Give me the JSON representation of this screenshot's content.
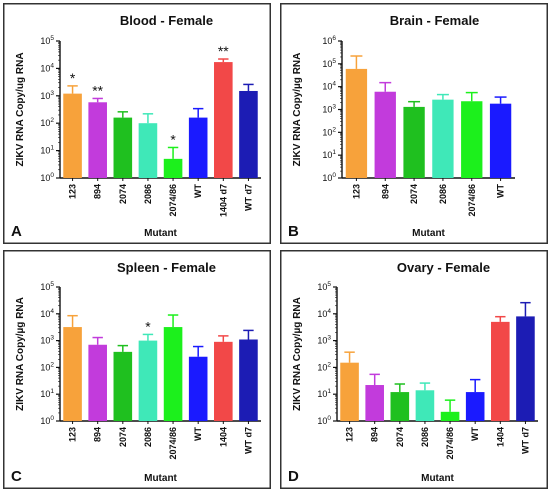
{
  "colors": {
    "orange": "#f7a23b",
    "magenta": "#c23bdc",
    "green": "#1fc01f",
    "aqua": "#3fe8b8",
    "lime": "#1cf01c",
    "blue": "#1a1aff",
    "red": "#f24848",
    "navy": "#1c1cb4"
  },
  "chart_data": [
    {
      "id": "a",
      "type": "bar",
      "panel_letter": "A",
      "title": "Blood - Female",
      "xlabel": "Mutant",
      "ylabel": "ZIKV RNA Copy/ug RNA",
      "log_scale": true,
      "ylim_exp": [
        0,
        5
      ],
      "categories": [
        "123",
        "894",
        "2074",
        "2086",
        "2074/86",
        "WT",
        "1404 d7",
        "WT d7"
      ],
      "values": [
        1200,
        580,
        160,
        100,
        5,
        160,
        17000,
        1500
      ],
      "error_upper": [
        2300,
        800,
        260,
        220,
        13,
        340,
        22000,
        2600
      ],
      "bar_colors": [
        "orange",
        "magenta",
        "green",
        "aqua",
        "lime",
        "blue",
        "red",
        "navy"
      ],
      "annotations": [
        "*",
        "**",
        "",
        "",
        "*",
        "",
        "**",
        ""
      ]
    },
    {
      "id": "b",
      "type": "bar",
      "panel_letter": "B",
      "title": "Brain - Female",
      "xlabel": "Mutant",
      "ylabel": "ZIKV RNA Copy/µg RNA",
      "log_scale": true,
      "ylim_exp": [
        0,
        6
      ],
      "categories": [
        "123",
        "894",
        "2074",
        "2086",
        "2074/86",
        "WT"
      ],
      "values": [
        60000,
        6000,
        1300,
        2700,
        2300,
        1800
      ],
      "error_upper": [
        220000,
        15000,
        2200,
        4500,
        5500,
        3500
      ],
      "bar_colors": [
        "orange",
        "magenta",
        "green",
        "aqua",
        "lime",
        "blue"
      ],
      "annotations": [
        "",
        "",
        "",
        "",
        "",
        ""
      ]
    },
    {
      "id": "c",
      "type": "bar",
      "panel_letter": "C",
      "title": "Spleen - Female",
      "xlabel": "Mutant",
      "ylabel": "ZIKV RNA Copy/µg RNA",
      "log_scale": true,
      "ylim_exp": [
        0,
        5
      ],
      "categories": [
        "123",
        "894",
        "2074",
        "2086",
        "2074/86",
        "WT",
        "1404",
        "WT d7"
      ],
      "values": [
        3200,
        700,
        380,
        1000,
        3200,
        250,
        900,
        1100
      ],
      "error_upper": [
        8500,
        1300,
        650,
        1700,
        9000,
        600,
        1500,
        2400
      ],
      "bar_colors": [
        "orange",
        "magenta",
        "green",
        "aqua",
        "lime",
        "blue",
        "red",
        "navy"
      ],
      "annotations": [
        "",
        "",
        "",
        "*",
        "",
        "",
        "",
        ""
      ]
    },
    {
      "id": "d",
      "type": "bar",
      "panel_letter": "D",
      "title": "Ovary - Female",
      "xlabel": "Mutant",
      "ylabel": "ZIKV RNA Copy/µg RNA",
      "log_scale": true,
      "ylim_exp": [
        0,
        5
      ],
      "categories": [
        "123",
        "894",
        "2074",
        "2086",
        "2074/86",
        "WT",
        "1404",
        "WT d7"
      ],
      "values": [
        150,
        22,
        12,
        14,
        2.2,
        12,
        5000,
        8000
      ],
      "error_upper": [
        370,
        55,
        24,
        26,
        6,
        35,
        7800,
        26000
      ],
      "bar_colors": [
        "orange",
        "magenta",
        "green",
        "aqua",
        "lime",
        "blue",
        "red",
        "navy"
      ],
      "annotations": [
        "",
        "",
        "",
        "",
        "",
        "",
        "",
        ""
      ]
    }
  ]
}
